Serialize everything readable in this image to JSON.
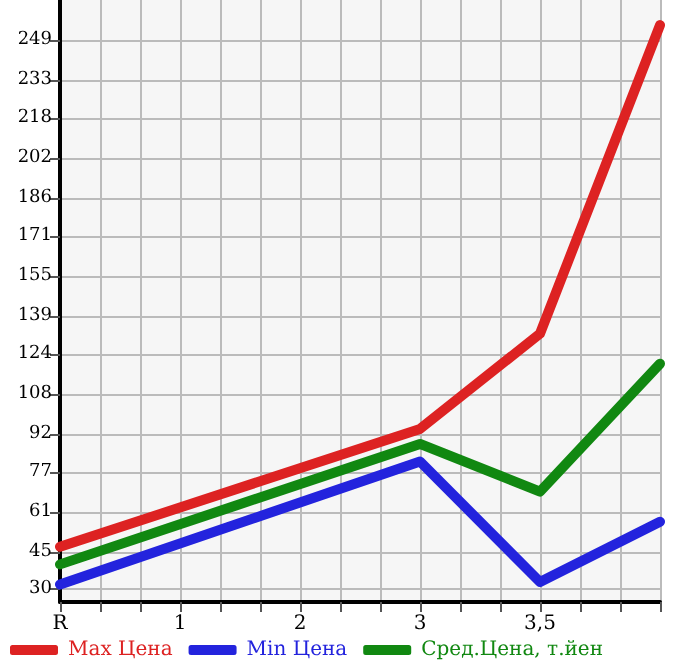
{
  "chart_data": {
    "type": "line",
    "categories": [
      "R",
      "1",
      "2",
      "3",
      "3,5",
      null
    ],
    "ylim": [
      25,
      265
    ],
    "yticks": [
      30,
      45,
      61,
      77,
      92,
      108,
      124,
      139,
      155,
      171,
      186,
      202,
      218,
      233,
      249
    ],
    "series": [
      {
        "name": "Max Цена",
        "color": "#dd2222",
        "values": [
          47,
          null,
          null,
          94,
          132,
          255
        ]
      },
      {
        "name": "Min Цена",
        "color": "#2323dd",
        "values": [
          32,
          null,
          null,
          81,
          33,
          57
        ]
      },
      {
        "name": "Сред.Цена, т.йен",
        "color": "#118811",
        "values": [
          40,
          null,
          null,
          88,
          69,
          120
        ]
      }
    ],
    "grid": true,
    "legend": "bottom",
    "marker": "none",
    "line_style": "solid"
  }
}
